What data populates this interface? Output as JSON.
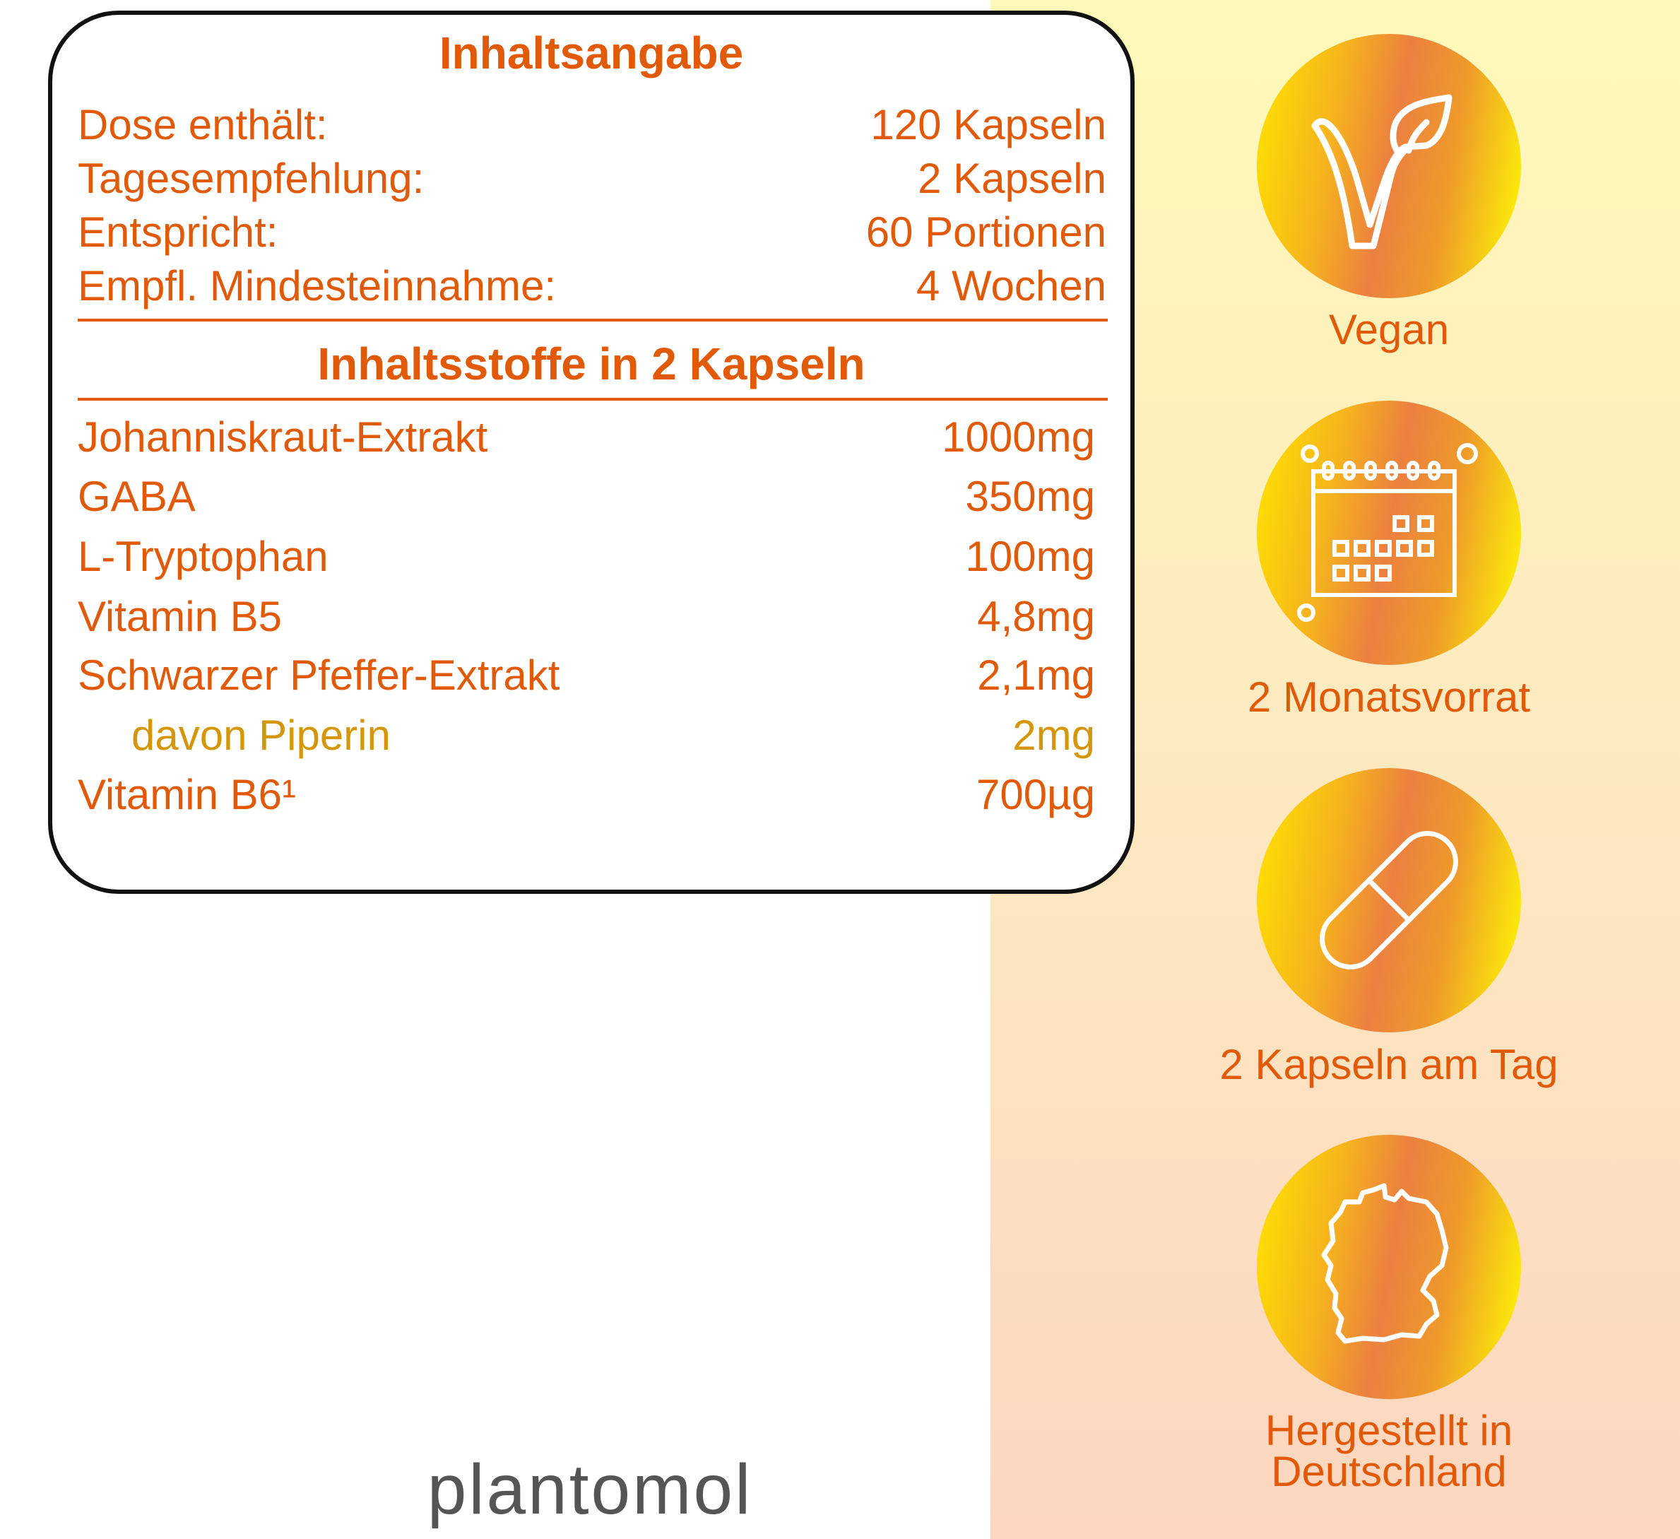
{
  "contents": {
    "title": "Inhaltsangabe",
    "rows": [
      {
        "label": "Dose enthält:",
        "value": "120 Kapseln"
      },
      {
        "label": "Tagesempfehlung:",
        "value": "2 Kapseln"
      },
      {
        "label": "Entspricht:",
        "value": "60 Portionen"
      },
      {
        "label": "Empfl. Mindesteinnahme:",
        "value": "4 Wochen"
      }
    ]
  },
  "ingredients": {
    "title": "Inhaltsstoffe in 2 Kapseln",
    "rows": [
      {
        "label": "Johanniskraut-Extrakt",
        "value": "1000mg"
      },
      {
        "label": "GABA",
        "value": "350mg"
      },
      {
        "label": "L-Tryptophan",
        "value": "100mg"
      },
      {
        "label": "Vitamin B5",
        "value": "4,8mg"
      },
      {
        "label": "Schwarzer Pfeffer-Extrakt",
        "value": "2,1mg"
      },
      {
        "label": "davon Piperin",
        "value": "2mg"
      },
      {
        "label": "Vitamin B6¹",
        "value": "700µg"
      }
    ]
  },
  "brand": "plantomol",
  "badges": [
    {
      "icon": "vegan-leaf-icon",
      "label": "Vegan"
    },
    {
      "icon": "calendar-icon",
      "label": "2 Monatsvorrat"
    },
    {
      "icon": "capsule-icon",
      "label": "2 Kapseln am Tag"
    },
    {
      "icon": "germany-map-icon",
      "label_line1": "Hergestellt in",
      "label_line2": "Deutschland"
    }
  ],
  "colors": {
    "text": "#e05a0a",
    "sub_text": "#d4960a",
    "brand": "#555555"
  }
}
